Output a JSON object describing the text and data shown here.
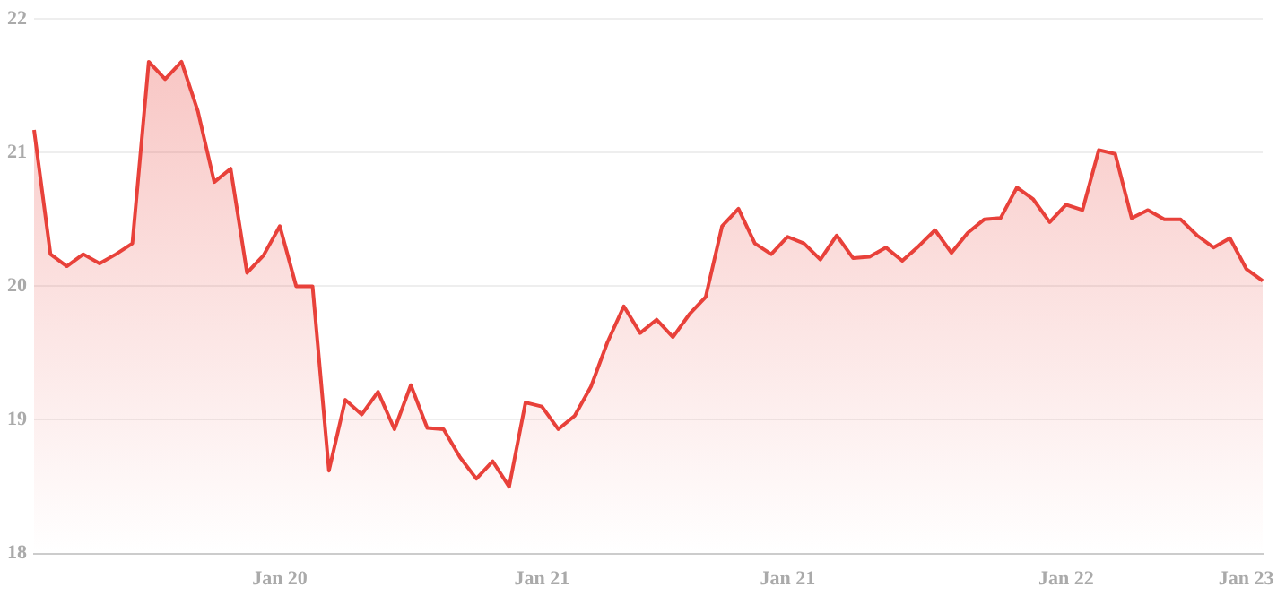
{
  "chart_data": {
    "type": "area",
    "categories": [
      null,
      null,
      null,
      null,
      null,
      null,
      null,
      null,
      null,
      null,
      null,
      null,
      null,
      null,
      null,
      "Jan 20",
      null,
      null,
      null,
      null,
      null,
      null,
      null,
      null,
      null,
      null,
      null,
      null,
      null,
      null,
      null,
      "Jan 21",
      null,
      null,
      null,
      null,
      null,
      null,
      null,
      null,
      null,
      null,
      null,
      null,
      null,
      null,
      "Jan 21",
      null,
      null,
      null,
      null,
      null,
      null,
      null,
      null,
      null,
      null,
      null,
      null,
      null,
      null,
      null,
      null,
      "Jan 22",
      null,
      null,
      null,
      null,
      null,
      null,
      null,
      null,
      null,
      null,
      "Jan 23",
      null
    ],
    "series": [
      {
        "color": "#e8413a",
        "values": [
          21.17,
          20.24,
          20.15,
          20.24,
          20.17,
          20.24,
          20.32,
          21.68,
          21.55,
          21.68,
          21.31,
          20.78,
          20.88,
          20.1,
          20.23,
          20.45,
          20.0,
          20.0,
          18.62,
          19.15,
          19.04,
          19.21,
          18.93,
          19.26,
          18.94,
          18.93,
          18.72,
          18.56,
          18.69,
          18.5,
          19.13,
          19.1,
          18.93,
          19.03,
          19.25,
          19.58,
          19.85,
          19.65,
          19.75,
          19.62,
          19.79,
          19.92,
          20.45,
          20.58,
          20.32,
          20.24,
          20.37,
          20.32,
          20.2,
          20.38,
          20.21,
          20.22,
          20.29,
          20.19,
          20.3,
          20.42,
          20.25,
          20.4,
          20.5,
          20.51,
          20.74,
          20.65,
          20.48,
          20.61,
          20.57,
          21.02,
          20.99,
          20.51,
          20.57,
          20.5,
          20.5,
          20.38,
          20.29,
          20.36,
          20.13,
          20.04
        ]
      }
    ],
    "ylim": [
      18,
      22
    ],
    "yticks": [
      18,
      19,
      20,
      21,
      22
    ],
    "grid": "y",
    "legend": false,
    "marker": "none",
    "line_style": "solid"
  }
}
